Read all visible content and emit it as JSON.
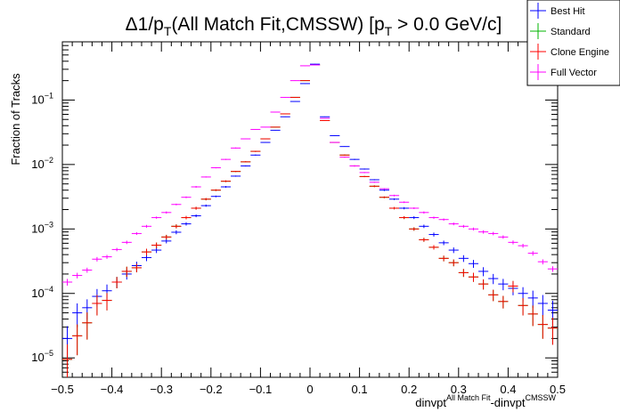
{
  "chart_data": {
    "type": "scatter",
    "title": {
      "prefix": "Δ1/p",
      "prefix_sub": "T",
      "middle": "(All Match Fit,CMSSW) [p",
      "middle_sub": "T",
      "suffix": " > 0.0 GeV/c]"
    },
    "ylabel": "Fraction of Tracks",
    "xlabel": {
      "a": "dinvpt",
      "a_sup": "All Match Fit",
      "b": "-dinvpt",
      "b_sup": "CMSSW"
    },
    "xlim": [
      -0.5,
      0.5
    ],
    "ylim": [
      5e-06,
      0.8
    ],
    "log_y": true,
    "grid": false,
    "x_ticks": [
      "−0.5",
      "−0.4",
      "−0.3",
      "−0.2",
      "−0.1",
      "0",
      "0.1",
      "0.2",
      "0.3",
      "0.4",
      "0.5"
    ],
    "y_ticks": [
      {
        "base": "10",
        "exp": "−5",
        "value": 1e-05
      },
      {
        "base": "10",
        "exp": "−4",
        "value": 0.0001
      },
      {
        "base": "10",
        "exp": "−3",
        "value": 0.001
      },
      {
        "base": "10",
        "exp": "−2",
        "value": 0.01
      },
      {
        "base": "10",
        "exp": "−1",
        "value": 0.1
      }
    ],
    "legend_position": "top-right",
    "bin_width": 0.02,
    "x": [
      -0.49,
      -0.47,
      -0.45,
      -0.43,
      -0.41,
      -0.39,
      -0.37,
      -0.35,
      -0.33,
      -0.31,
      -0.29,
      -0.27,
      -0.25,
      -0.23,
      -0.21,
      -0.19,
      -0.17,
      -0.15,
      -0.13,
      -0.11,
      -0.09,
      -0.07,
      -0.05,
      -0.03,
      -0.01,
      0.01,
      0.03,
      0.05,
      0.07,
      0.09,
      0.11,
      0.13,
      0.15,
      0.17,
      0.19,
      0.21,
      0.23,
      0.25,
      0.27,
      0.29,
      0.31,
      0.33,
      0.35,
      0.37,
      0.39,
      0.41,
      0.43,
      0.45,
      0.47,
      0.49
    ],
    "series": [
      {
        "name": "Best Hit",
        "color": "#0000ff",
        "values": [
          2e-05,
          5e-05,
          6e-05,
          9e-05,
          0.00011,
          0.00015,
          0.0002,
          0.00027,
          0.00036,
          0.00047,
          0.00065,
          0.00089,
          0.0012,
          0.0016,
          0.0023,
          0.0032,
          0.0045,
          0.0066,
          0.0095,
          0.014,
          0.022,
          0.034,
          0.055,
          0.095,
          0.18,
          0.36,
          0.055,
          0.028,
          0.019,
          0.012,
          0.0085,
          0.0058,
          0.004,
          0.0029,
          0.0021,
          0.0015,
          0.0011,
          0.00082,
          0.00061,
          0.00047,
          0.00035,
          0.00029,
          0.00022,
          0.00017,
          0.00014,
          0.00012,
          0.0001,
          8.5e-05,
          7e-05,
          5.5e-05
        ],
        "err_rel": [
          0.55,
          0.4,
          0.35,
          0.3,
          0.25,
          0.2,
          0.18,
          0.15,
          0.12,
          0.1,
          0.08,
          0.07,
          0.06,
          0.05,
          0.04,
          0.03,
          0.03,
          0.02,
          0.02,
          0.02,
          0.01,
          0.01,
          0.01,
          0.01,
          0.01,
          0.01,
          0.01,
          0.01,
          0.01,
          0.02,
          0.02,
          0.02,
          0.03,
          0.03,
          0.04,
          0.05,
          0.06,
          0.07,
          0.08,
          0.1,
          0.12,
          0.14,
          0.16,
          0.18,
          0.2,
          0.22,
          0.25,
          0.3,
          0.35,
          0.4
        ]
      },
      {
        "name": "Standard",
        "color": "#00b400",
        "values": [
          9.5e-06,
          2.2e-05,
          3.5e-05,
          7e-05,
          7.8e-05,
          0.00015,
          0.00022,
          0.00025,
          0.00044,
          0.00056,
          0.00075,
          0.0011,
          0.0015,
          0.0021,
          0.0029,
          0.004,
          0.0055,
          0.0078,
          0.011,
          0.016,
          0.025,
          0.038,
          0.061,
          0.11,
          0.2,
          0.35,
          0.048,
          0.022,
          0.014,
          0.0095,
          0.0065,
          0.0046,
          0.0031,
          0.0021,
          0.0015,
          0.001,
          0.00068,
          0.00052,
          0.00035,
          0.0003,
          0.00021,
          0.00018,
          0.00014,
          9.5e-05,
          7.5e-05,
          0.00013,
          6.5e-05,
          4.8e-05,
          3.3e-05,
          2.9e-05
        ],
        "err_rel": [
          0.7,
          0.5,
          0.45,
          0.35,
          0.3,
          0.2,
          0.18,
          0.15,
          0.12,
          0.1,
          0.08,
          0.07,
          0.06,
          0.05,
          0.04,
          0.03,
          0.03,
          0.02,
          0.02,
          0.02,
          0.01,
          0.01,
          0.01,
          0.01,
          0.01,
          0.01,
          0.01,
          0.01,
          0.02,
          0.02,
          0.02,
          0.03,
          0.03,
          0.04,
          0.05,
          0.06,
          0.07,
          0.08,
          0.1,
          0.12,
          0.14,
          0.16,
          0.18,
          0.2,
          0.22,
          0.2,
          0.3,
          0.35,
          0.4,
          0.45
        ]
      },
      {
        "name": "Clone Engine",
        "color": "#ff0000",
        "values": [
          9.5e-06,
          2.2e-05,
          3.5e-05,
          7e-05,
          7.8e-05,
          0.00015,
          0.00022,
          0.00025,
          0.00044,
          0.00056,
          0.00075,
          0.0011,
          0.0015,
          0.0021,
          0.0029,
          0.004,
          0.0055,
          0.0078,
          0.011,
          0.016,
          0.025,
          0.038,
          0.061,
          0.11,
          0.2,
          0.35,
          0.048,
          0.022,
          0.014,
          0.0095,
          0.0065,
          0.0046,
          0.0031,
          0.0021,
          0.0015,
          0.001,
          0.00068,
          0.00052,
          0.00035,
          0.0003,
          0.00021,
          0.00018,
          0.00014,
          9.5e-05,
          7.5e-05,
          0.00013,
          6.5e-05,
          4.8e-05,
          3.3e-05,
          2.9e-05
        ],
        "err_rel": [
          0.7,
          0.5,
          0.45,
          0.35,
          0.3,
          0.2,
          0.18,
          0.15,
          0.12,
          0.1,
          0.08,
          0.07,
          0.06,
          0.05,
          0.04,
          0.03,
          0.03,
          0.02,
          0.02,
          0.02,
          0.01,
          0.01,
          0.01,
          0.01,
          0.01,
          0.01,
          0.01,
          0.01,
          0.02,
          0.02,
          0.02,
          0.03,
          0.03,
          0.04,
          0.05,
          0.06,
          0.07,
          0.08,
          0.1,
          0.12,
          0.14,
          0.16,
          0.18,
          0.2,
          0.22,
          0.2,
          0.3,
          0.35,
          0.4,
          0.45
        ]
      },
      {
        "name": "Full Vector",
        "color": "#ff00ff",
        "values": [
          0.00015,
          0.00019,
          0.00023,
          0.00034,
          0.00037,
          0.00048,
          0.00062,
          0.00085,
          0.0011,
          0.0015,
          0.0018,
          0.0024,
          0.0031,
          0.0045,
          0.0064,
          0.0089,
          0.012,
          0.018,
          0.025,
          0.035,
          0.038,
          0.065,
          0.11,
          0.2,
          0.34,
          0.35,
          0.052,
          0.022,
          0.013,
          0.0095,
          0.0075,
          0.0053,
          0.0042,
          0.0033,
          0.0026,
          0.0021,
          0.0018,
          0.0015,
          0.0014,
          0.0012,
          0.0011,
          0.001,
          0.0009,
          0.00085,
          0.00075,
          0.00062,
          0.00055,
          0.00042,
          0.00031,
          0.00024
        ],
        "err_rel": [
          0.12,
          0.1,
          0.09,
          0.08,
          0.07,
          0.06,
          0.06,
          0.05,
          0.05,
          0.04,
          0.04,
          0.03,
          0.03,
          0.03,
          0.02,
          0.02,
          0.02,
          0.02,
          0.01,
          0.01,
          0.01,
          0.01,
          0.01,
          0.01,
          0.01,
          0.01,
          0.01,
          0.01,
          0.02,
          0.02,
          0.02,
          0.02,
          0.02,
          0.03,
          0.03,
          0.03,
          0.04,
          0.04,
          0.04,
          0.05,
          0.05,
          0.05,
          0.06,
          0.06,
          0.06,
          0.07,
          0.07,
          0.08,
          0.09,
          0.1
        ]
      }
    ]
  }
}
